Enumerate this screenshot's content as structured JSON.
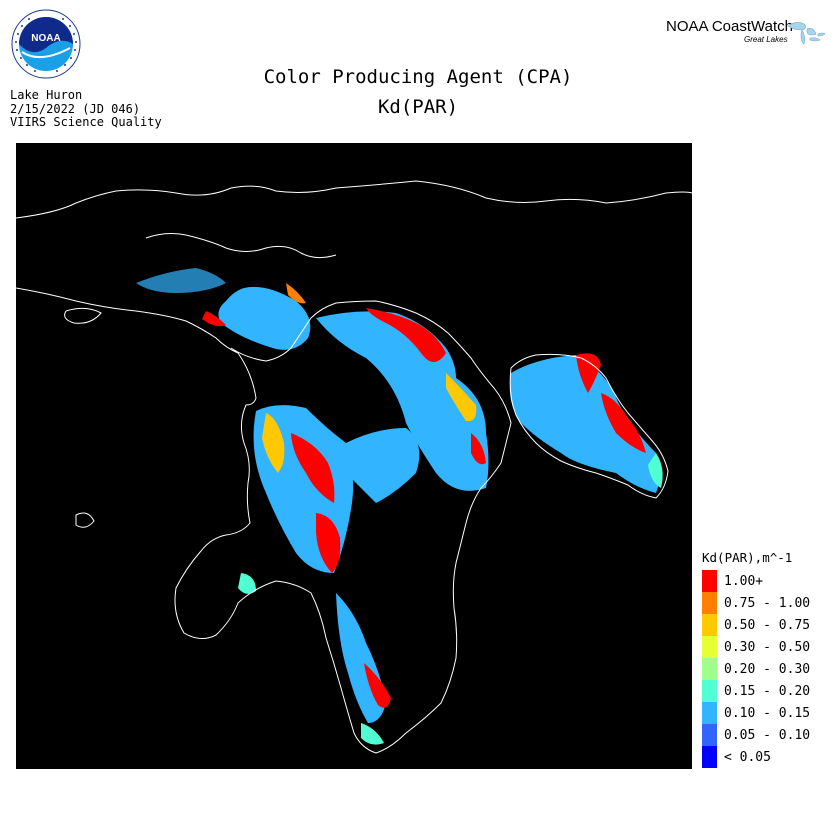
{
  "header": {
    "title_line1": "Color Producing Agent (CPA)",
    "title_line2": "Kd(PAR)",
    "region": "Lake Huron",
    "date": "2/15/2022 (JD 046)",
    "sensor": "VIIRS Science Quality"
  },
  "logos": {
    "noaa_text": "NOAA",
    "coastwatch_title": "NOAA CoastWatch",
    "coastwatch_subtitle": "Great Lakes"
  },
  "legend": {
    "title": "Kd(PAR),m^-1",
    "items": [
      {
        "label": "1.00+",
        "color": "#ff0000"
      },
      {
        "label": "0.75 - 1.00",
        "color": "#ff7f00"
      },
      {
        "label": "0.50 - 0.75",
        "color": "#ffc800"
      },
      {
        "label": "0.30 - 0.50",
        "color": "#e6ff32"
      },
      {
        "label": "0.20 - 0.30",
        "color": "#a0ff8c"
      },
      {
        "label": "0.15 - 0.20",
        "color": "#50ffd2"
      },
      {
        "label": "0.10 - 0.15",
        "color": "#32b4ff"
      },
      {
        "label": "0.05 - 0.10",
        "color": "#3264ff"
      },
      {
        "label": "< 0.05",
        "color": "#0000ff"
      }
    ]
  },
  "map": {
    "background": "#000000",
    "coastline_color": "#ffffff"
  }
}
